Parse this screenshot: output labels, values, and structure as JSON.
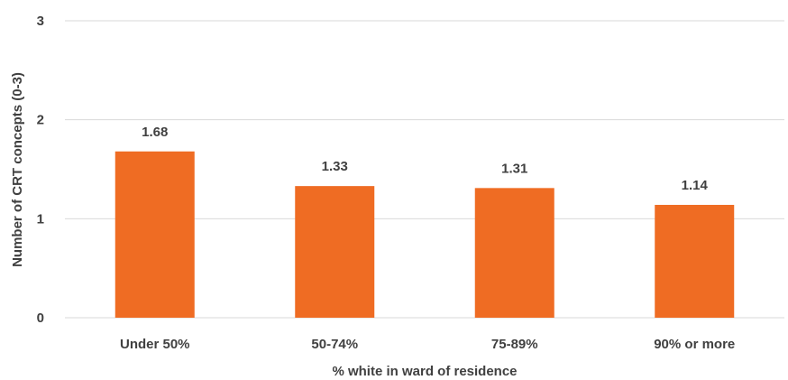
{
  "chart_data": {
    "type": "bar",
    "title": "",
    "xlabel": "% white in ward of residence",
    "ylabel": "Number of CRT concepts (0-3)",
    "categories": [
      "Under 50%",
      "50-74%",
      "75-89%",
      "90% or more"
    ],
    "values": [
      1.68,
      1.33,
      1.31,
      1.14
    ],
    "value_labels": [
      "1.68",
      "1.33",
      "1.31",
      "1.14"
    ],
    "ylim": [
      0,
      3
    ],
    "yticks": [
      "0",
      "1",
      "2",
      "3"
    ],
    "grid": true,
    "legend": "none",
    "bar_color": "#EF6C23"
  }
}
